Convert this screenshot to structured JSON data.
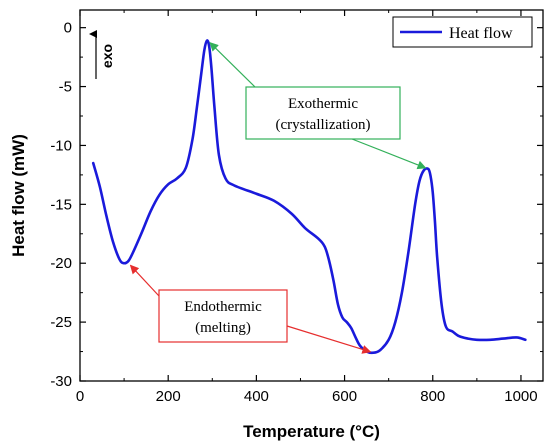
{
  "chart_data": {
    "type": "line",
    "xlabel": "Temperature (°C)",
    "ylabel": "Heat flow (mW)",
    "xlim": [
      0,
      1050
    ],
    "ylim": [
      -30,
      1.5
    ],
    "xticks": [
      0,
      200,
      400,
      600,
      800,
      1000
    ],
    "yticks": [
      0,
      -5,
      -10,
      -15,
      -20,
      -25,
      -30
    ],
    "grid": false,
    "legend": {
      "position": "top-right",
      "entries": [
        "Heat flow"
      ]
    },
    "direction_label": "exo",
    "series": [
      {
        "name": "Heat flow",
        "color": "#1a1adb",
        "x": [
          30,
          45,
          60,
          75,
          90,
          100,
          110,
          120,
          140,
          160,
          180,
          200,
          220,
          240,
          255,
          265,
          275,
          282,
          288,
          293,
          298,
          305,
          315,
          330,
          350,
          400,
          440,
          480,
          510,
          540,
          555,
          565,
          575,
          585,
          595,
          605,
          615,
          625,
          635,
          650,
          665,
          680,
          700,
          715,
          730,
          745,
          760,
          770,
          780,
          790,
          795,
          800,
          805,
          810,
          820,
          830,
          845,
          860,
          880,
          900,
          930,
          960,
          990,
          1010
        ],
        "y": [
          -11.5,
          -13.5,
          -16.0,
          -18.2,
          -19.7,
          -20.0,
          -19.8,
          -19.1,
          -17.4,
          -15.6,
          -14.2,
          -13.3,
          -12.8,
          -11.9,
          -9.5,
          -6.8,
          -3.9,
          -1.9,
          -1.1,
          -1.6,
          -3.4,
          -6.8,
          -10.8,
          -12.8,
          -13.4,
          -14.1,
          -14.7,
          -15.8,
          -17.0,
          -17.9,
          -18.6,
          -19.8,
          -21.5,
          -23.5,
          -24.6,
          -25.0,
          -25.5,
          -26.3,
          -27.0,
          -27.5,
          -27.6,
          -27.4,
          -26.5,
          -25.0,
          -22.5,
          -19.0,
          -15.0,
          -13.0,
          -12.1,
          -12.0,
          -12.6,
          -14.0,
          -16.5,
          -19.5,
          -23.5,
          -25.4,
          -25.8,
          -26.2,
          -26.4,
          -26.5,
          -26.5,
          -26.4,
          -26.3,
          -26.5
        ]
      }
    ],
    "annotations": [
      {
        "lines": [
          "Exothermic",
          "(crystallization)"
        ],
        "box_color": "#33b05a",
        "arrow_color": "#33b05a",
        "targets": [
          [
            290,
            -1.1
          ],
          [
            790,
            -12.0
          ]
        ]
      },
      {
        "lines": [
          "Endothermic",
          "(melting)"
        ],
        "box_color": "#e62e2e",
        "arrow_color": "#e62e2e",
        "targets": [
          [
            110,
            -20.0
          ],
          [
            665,
            -27.6
          ]
        ]
      }
    ]
  }
}
